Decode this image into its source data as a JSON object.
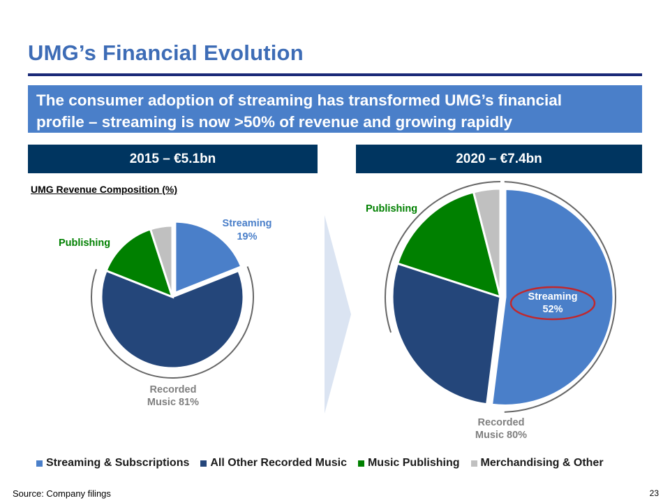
{
  "slide": {
    "title": "UMG’s Financial Evolution",
    "subtitle_line1": "The consumer adoption of streaming has transformed UMG’s financial",
    "subtitle_line2": "profile – streaming is now >50% of revenue and growing rapidly",
    "composition_label": "UMG Revenue Composition (%)",
    "source": "Source: Company filings",
    "page_number": "23"
  },
  "colors": {
    "streaming": "#4a7fc9",
    "recorded_other": "#24467a",
    "publishing": "#008000",
    "merch": "#c0c0c0",
    "bracket": "#666666",
    "label_gray": "#7f7f7f",
    "circle_red": "#c0282d",
    "arrow": "#dbe4f2"
  },
  "chart_data": [
    {
      "type": "pie",
      "title": "2015 – €5.1bn",
      "series": [
        {
          "name": "Streaming & Subscriptions",
          "value": 19
        },
        {
          "name": "All Other Recorded Music",
          "value": 62
        },
        {
          "name": "Music Publishing",
          "value": 14
        },
        {
          "name": "Merchandising & Other",
          "value": 5
        }
      ],
      "labels": {
        "streaming_name": "Streaming",
        "streaming_value": "19%",
        "publishing": "Publishing",
        "recorded_line1": "Recorded",
        "recorded_line2": "Music 81%"
      }
    },
    {
      "type": "pie",
      "title": "2020 – €7.4bn",
      "series": [
        {
          "name": "Streaming & Subscriptions",
          "value": 52
        },
        {
          "name": "All Other Recorded Music",
          "value": 28
        },
        {
          "name": "Music Publishing",
          "value": 16
        },
        {
          "name": "Merchandising & Other",
          "value": 4
        }
      ],
      "labels": {
        "streaming_name": "Streaming",
        "streaming_value": "52%",
        "publishing": "Publishing",
        "recorded_line1": "Recorded",
        "recorded_line2": "Music 80%"
      }
    }
  ],
  "legend": [
    {
      "label": "Streaming & Subscriptions",
      "color": "#4a7fc9"
    },
    {
      "label": "All Other Recorded Music",
      "color": "#24467a"
    },
    {
      "label": "Music Publishing",
      "color": "#008000"
    },
    {
      "label": "Merchandising & Other",
      "color": "#c0c0c0"
    }
  ]
}
